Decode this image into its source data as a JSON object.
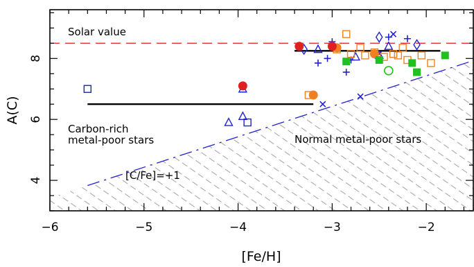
{
  "chart_data": {
    "type": "scatter",
    "title": "",
    "xlabel": "[Fe/H]",
    "ylabel": "A(C)",
    "xlim": [
      -6,
      -1.5
    ],
    "ylim": [
      3,
      9.6
    ],
    "x_ticks": [
      {
        "value": -6,
        "label": "−6"
      },
      {
        "value": -5,
        "label": "−5"
      },
      {
        "value": -4,
        "label": "−4"
      },
      {
        "value": -3,
        "label": "−3"
      },
      {
        "value": -2,
        "label": "−2"
      }
    ],
    "y_ticks": [
      {
        "value": 4,
        "label": "4"
      },
      {
        "value": 6,
        "label": "6"
      },
      {
        "value": 8,
        "label": "8"
      }
    ],
    "grid": false,
    "annotations": {
      "solar_label": "Solar value",
      "carbon_rich_line1": "Carbon-rich",
      "carbon_rich_line2": "metal-poor stars",
      "normal_label": "Normal metal-poor stars",
      "cfe_label": "[C/Fe]=+1"
    },
    "reference_lines": {
      "solar": {
        "y": 8.5,
        "color": "#e03030"
      },
      "cfe_plus1": {
        "x": [
          -5.6,
          -1.5
        ],
        "y": [
          3.83,
          7.93
        ],
        "color": "#2020d0"
      }
    },
    "plateaus": [
      {
        "x": [
          -5.6,
          -3.2
        ],
        "y": 6.5
      },
      {
        "x": [
          -3.4,
          -1.85
        ],
        "y": 8.25
      }
    ],
    "series": [
      {
        "marker": "square",
        "color": "#2020d0",
        "points": [
          [
            -5.6,
            7.0
          ],
          [
            -3.9,
            5.9
          ]
        ]
      },
      {
        "marker": "triangle",
        "color": "#2020d0",
        "points": [
          [
            -4.1,
            5.9
          ],
          [
            -3.95,
            7.0
          ],
          [
            -3.95,
            6.1
          ],
          [
            -3.15,
            8.3
          ],
          [
            -2.75,
            8.05
          ],
          [
            -2.5,
            8.1
          ],
          [
            -2.4,
            8.4
          ]
        ]
      },
      {
        "marker": "diamond",
        "color": "#2020d0",
        "points": [
          [
            -3.3,
            8.3
          ],
          [
            -2.5,
            8.7
          ],
          [
            -2.1,
            8.45
          ]
        ]
      },
      {
        "marker": "plus",
        "color": "#2020d0",
        "points": [
          [
            -3.15,
            7.85
          ],
          [
            -3.05,
            8.0
          ],
          [
            -3.0,
            8.55
          ],
          [
            -2.85,
            7.55
          ],
          [
            -2.8,
            7.95
          ],
          [
            -2.4,
            8.7
          ],
          [
            -2.2,
            8.65
          ]
        ]
      },
      {
        "marker": "cross",
        "color": "#2020d0",
        "points": [
          [
            -3.1,
            6.5
          ],
          [
            -2.7,
            6.75
          ],
          [
            -2.5,
            8.15
          ],
          [
            -2.35,
            8.8
          ]
        ]
      },
      {
        "marker": "square-open",
        "color": "#f08020",
        "points": [
          [
            -3.25,
            6.8
          ],
          [
            -2.95,
            8.3
          ],
          [
            -2.85,
            8.8
          ],
          [
            -2.8,
            8.15
          ],
          [
            -2.7,
            8.35
          ],
          [
            -2.65,
            8.1
          ],
          [
            -2.55,
            8.2
          ],
          [
            -2.45,
            8.05
          ],
          [
            -2.35,
            8.15
          ],
          [
            -2.3,
            8.1
          ],
          [
            -2.25,
            8.35
          ],
          [
            -2.2,
            7.95
          ],
          [
            -2.05,
            8.1
          ],
          [
            -1.95,
            7.85
          ]
        ]
      },
      {
        "marker": "circle-filled",
        "color": "#f08020",
        "points": [
          [
            -3.2,
            6.8
          ],
          [
            -2.95,
            8.35
          ],
          [
            -2.55,
            8.15
          ]
        ]
      },
      {
        "marker": "circle-filled",
        "color": "#e02020",
        "points": [
          [
            -3.95,
            7.1
          ],
          [
            -3.35,
            8.4
          ],
          [
            -3.0,
            8.4
          ]
        ]
      },
      {
        "marker": "square-filled",
        "color": "#20c020",
        "points": [
          [
            -2.85,
            7.9
          ],
          [
            -2.5,
            7.95
          ],
          [
            -2.15,
            7.85
          ],
          [
            -2.1,
            7.55
          ],
          [
            -1.8,
            8.1
          ]
        ]
      },
      {
        "marker": "circle-open",
        "color": "#20c020",
        "points": [
          [
            -2.4,
            7.6
          ]
        ]
      }
    ]
  }
}
